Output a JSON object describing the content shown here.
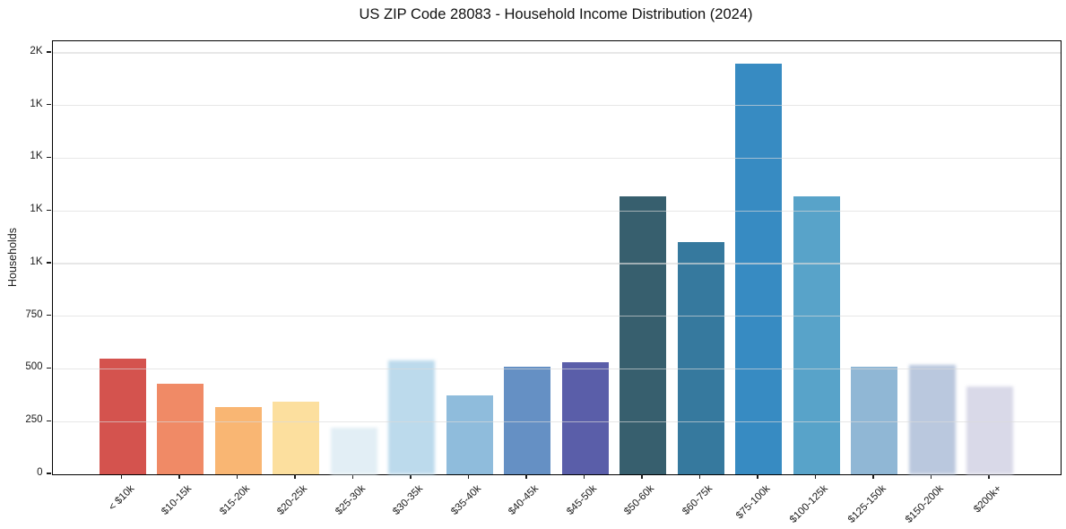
{
  "header": {
    "title": "US ZIP Code 28083 - Household Income Distribution (2024)"
  },
  "chart_data": {
    "type": "bar",
    "title": "US ZIP Code 28083 - Household Income Distribution (2024)",
    "xlabel": "",
    "ylabel": "Households",
    "categories": [
      "< $10k",
      "$10-15k",
      "$15-20k",
      "$20-25k",
      "$25-30k",
      "$30-35k",
      "$35-40k",
      "$40-45k",
      "$45-50k",
      "$50-60k",
      "$60-75k",
      "$75-100k",
      "$100-125k",
      "$125-150k",
      "$150-200k",
      "$200k+"
    ],
    "values": [
      550,
      430,
      320,
      345,
      220,
      540,
      375,
      510,
      530,
      1320,
      1100,
      1950,
      1320,
      510,
      520,
      415
    ],
    "bar_colors": [
      "#d4534e",
      "#f08a66",
      "#f9b673",
      "#fcdf9e",
      "#e2eef5",
      "#bcdaec",
      "#8fbcdc",
      "#6590c4",
      "#5a5ea9",
      "#375f6e",
      "#36799e",
      "#378bc2",
      "#58a3c9",
      "#90b7d5",
      "#bac8de",
      "#d9d9e8"
    ],
    "faded_bars": [
      false,
      false,
      false,
      false,
      true,
      true,
      false,
      false,
      false,
      false,
      false,
      false,
      false,
      false,
      true,
      true
    ],
    "ylim": [
      0,
      2055
    ],
    "yticks": [
      {
        "value": 0,
        "label": "0"
      },
      {
        "value": 250,
        "label": "250"
      },
      {
        "value": 500,
        "label": "500"
      },
      {
        "value": 750,
        "label": "750"
      },
      {
        "value": 1000,
        "label": "1K"
      },
      {
        "value": 1250,
        "label": "1K"
      },
      {
        "value": 1500,
        "label": "1K"
      },
      {
        "value": 1750,
        "label": "1K"
      },
      {
        "value": 2000,
        "label": "2K"
      }
    ],
    "grid": true,
    "grid_color": "#e8e8e8",
    "legend": "none",
    "background": "#ffffff"
  }
}
